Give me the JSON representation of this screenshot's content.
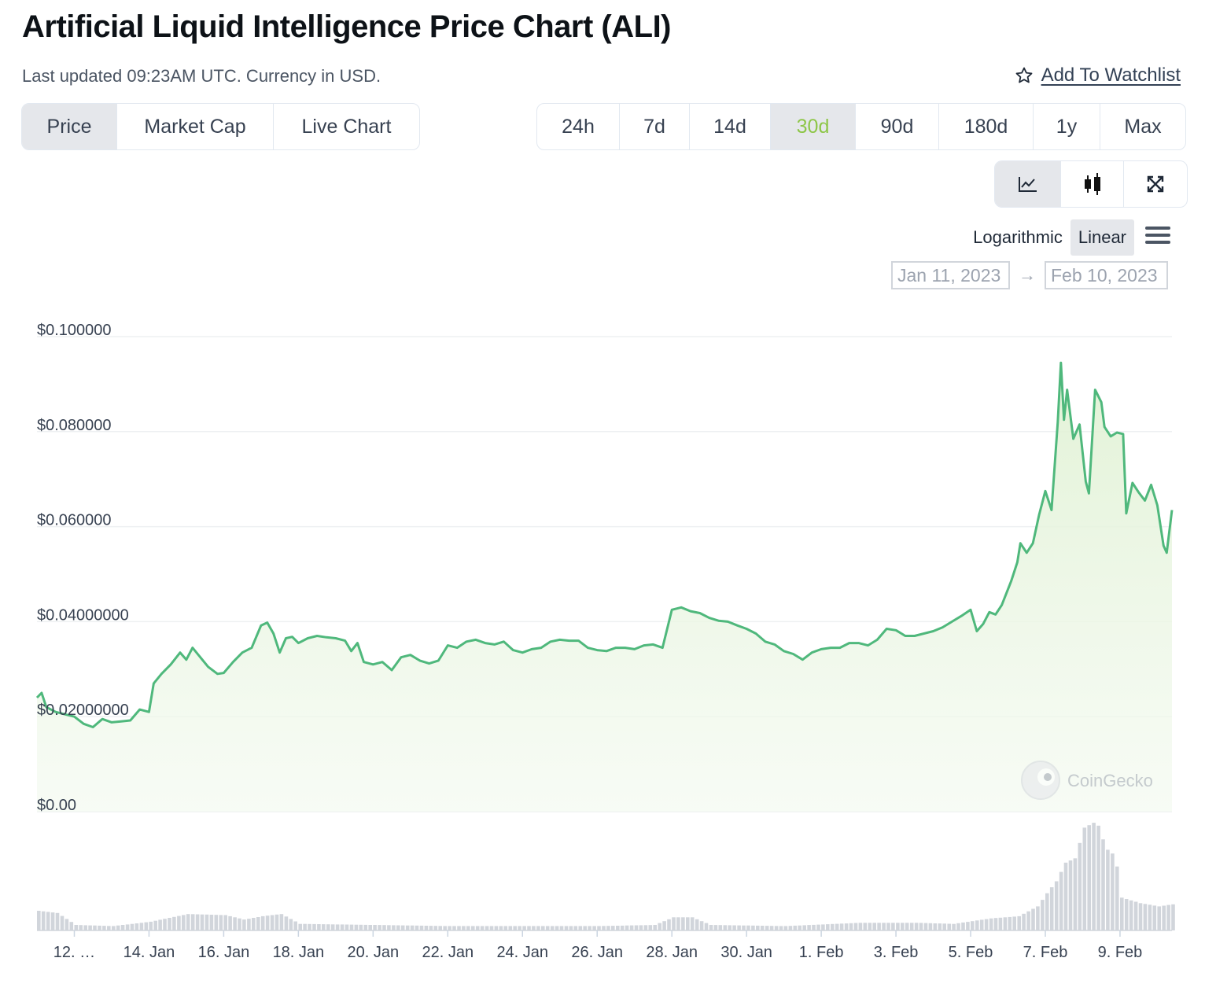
{
  "header": {
    "title": "Artificial Liquid Intelligence Price Chart (ALI)",
    "updated": "Last updated 09:23AM UTC. Currency in USD.",
    "watchlist": "Add To Watchlist"
  },
  "tabs": [
    "Price",
    "Market Cap",
    "Live Chart"
  ],
  "active_tab": "Price",
  "ranges": [
    "24h",
    "7d",
    "14d",
    "30d",
    "90d",
    "180d",
    "1y",
    "Max"
  ],
  "active_range": "30d",
  "chart_types": [
    {
      "name": "line-chart-icon"
    },
    {
      "name": "candlestick-icon"
    },
    {
      "name": "expand-icon"
    }
  ],
  "scale": {
    "log": "Logarithmic",
    "linear": "Linear",
    "selected": "Linear"
  },
  "date_range": {
    "from": "Jan 11, 2023",
    "to": "Feb 10, 2023"
  },
  "watermark": "CoinGecko",
  "colors": {
    "line": "#4fb87c",
    "fill_top": "#e6f5dc",
    "volume": "#d1d5db",
    "grid": "#eef0f2"
  },
  "chart_data": {
    "type": "area",
    "title": "",
    "xlabel": "",
    "ylabel": "",
    "ylim": [
      0,
      0.1
    ],
    "xlim": [
      "2023-01-11",
      "2023-02-10"
    ],
    "y_ticks": [
      "$0.00",
      "$0.02000000",
      "$0.04000000",
      "$0.060000",
      "$0.080000",
      "$0.100000"
    ],
    "x_ticks": [
      "12. …",
      "14. Jan",
      "16. Jan",
      "18. Jan",
      "20. Jan",
      "22. Jan",
      "24. Jan",
      "26. Jan",
      "28. Jan",
      "30. Jan",
      "1. Feb",
      "3. Feb",
      "5. Feb",
      "7. Feb",
      "9. Feb"
    ],
    "series": [
      {
        "values_desc": "price",
        "points": [
          [
            "2023-01-11 00:00",
            0.024
          ],
          [
            "2023-01-11 03:00",
            0.025
          ],
          [
            "2023-01-11 06:00",
            0.022
          ],
          [
            "2023-01-11 12:00",
            0.021
          ],
          [
            "2023-01-11 18:00",
            0.0205
          ],
          [
            "2023-01-12 00:00",
            0.02
          ],
          [
            "2023-01-12 06:00",
            0.0185
          ],
          [
            "2023-01-12 12:00",
            0.0178
          ],
          [
            "2023-01-12 18:00",
            0.0195
          ],
          [
            "2023-01-13 00:00",
            0.0188
          ],
          [
            "2023-01-13 06:00",
            0.019
          ],
          [
            "2023-01-13 12:00",
            0.0192
          ],
          [
            "2023-01-13 18:00",
            0.0215
          ],
          [
            "2023-01-14 00:00",
            0.021
          ],
          [
            "2023-01-14 03:00",
            0.027
          ],
          [
            "2023-01-14 08:00",
            0.029
          ],
          [
            "2023-01-14 14:00",
            0.031
          ],
          [
            "2023-01-14 20:00",
            0.0335
          ],
          [
            "2023-01-15 00:00",
            0.032
          ],
          [
            "2023-01-15 04:00",
            0.0345
          ],
          [
            "2023-01-15 09:00",
            0.0325
          ],
          [
            "2023-01-15 14:00",
            0.0305
          ],
          [
            "2023-01-15 20:00",
            0.029
          ],
          [
            "2023-01-16 00:00",
            0.0292
          ],
          [
            "2023-01-16 06:00",
            0.0315
          ],
          [
            "2023-01-16 12:00",
            0.0335
          ],
          [
            "2023-01-16 18:00",
            0.0345
          ],
          [
            "2023-01-17 00:00",
            0.0392
          ],
          [
            "2023-01-17 04:00",
            0.0398
          ],
          [
            "2023-01-17 08:00",
            0.0375
          ],
          [
            "2023-01-17 12:00",
            0.0335
          ],
          [
            "2023-01-17 16:00",
            0.0365
          ],
          [
            "2023-01-17 20:00",
            0.0368
          ],
          [
            "2023-01-18 00:00",
            0.0355
          ],
          [
            "2023-01-18 06:00",
            0.0365
          ],
          [
            "2023-01-18 12:00",
            0.037
          ],
          [
            "2023-01-18 18:00",
            0.0367
          ],
          [
            "2023-01-19 00:00",
            0.0365
          ],
          [
            "2023-01-19 06:00",
            0.036
          ],
          [
            "2023-01-19 10:00",
            0.0338
          ],
          [
            "2023-01-19 14:00",
            0.0355
          ],
          [
            "2023-01-19 18:00",
            0.0315
          ],
          [
            "2023-01-20 00:00",
            0.031
          ],
          [
            "2023-01-20 06:00",
            0.0315
          ],
          [
            "2023-01-20 12:00",
            0.0298
          ],
          [
            "2023-01-20 18:00",
            0.0325
          ],
          [
            "2023-01-21 00:00",
            0.033
          ],
          [
            "2023-01-21 06:00",
            0.0318
          ],
          [
            "2023-01-21 12:00",
            0.0312
          ],
          [
            "2023-01-21 18:00",
            0.0318
          ],
          [
            "2023-01-22 00:00",
            0.035
          ],
          [
            "2023-01-22 06:00",
            0.0345
          ],
          [
            "2023-01-22 12:00",
            0.0358
          ],
          [
            "2023-01-22 18:00",
            0.0362
          ],
          [
            "2023-01-23 00:00",
            0.0355
          ],
          [
            "2023-01-23 06:00",
            0.0352
          ],
          [
            "2023-01-23 12:00",
            0.0358
          ],
          [
            "2023-01-23 18:00",
            0.034
          ],
          [
            "2023-01-24 00:00",
            0.0335
          ],
          [
            "2023-01-24 06:00",
            0.0342
          ],
          [
            "2023-01-24 12:00",
            0.0345
          ],
          [
            "2023-01-24 18:00",
            0.0358
          ],
          [
            "2023-01-25 00:00",
            0.0362
          ],
          [
            "2023-01-25 06:00",
            0.036
          ],
          [
            "2023-01-25 12:00",
            0.036
          ],
          [
            "2023-01-25 18:00",
            0.0345
          ],
          [
            "2023-01-26 00:00",
            0.034
          ],
          [
            "2023-01-26 06:00",
            0.0338
          ],
          [
            "2023-01-26 12:00",
            0.0345
          ],
          [
            "2023-01-26 18:00",
            0.0345
          ],
          [
            "2023-01-27 00:00",
            0.0342
          ],
          [
            "2023-01-27 06:00",
            0.035
          ],
          [
            "2023-01-27 12:00",
            0.0352
          ],
          [
            "2023-01-27 18:00",
            0.0345
          ],
          [
            "2023-01-28 00:00",
            0.0425
          ],
          [
            "2023-01-28 06:00",
            0.043
          ],
          [
            "2023-01-28 12:00",
            0.0422
          ],
          [
            "2023-01-28 18:00",
            0.0418
          ],
          [
            "2023-01-29 00:00",
            0.0408
          ],
          [
            "2023-01-29 06:00",
            0.0402
          ],
          [
            "2023-01-29 12:00",
            0.04
          ],
          [
            "2023-01-29 18:00",
            0.0392
          ],
          [
            "2023-01-30 00:00",
            0.0385
          ],
          [
            "2023-01-30 06:00",
            0.0375
          ],
          [
            "2023-01-30 12:00",
            0.0358
          ],
          [
            "2023-01-30 18:00",
            0.0352
          ],
          [
            "2023-01-31 00:00",
            0.0338
          ],
          [
            "2023-01-31 06:00",
            0.0332
          ],
          [
            "2023-01-31 12:00",
            0.032
          ],
          [
            "2023-01-31 18:00",
            0.0335
          ],
          [
            "2023-02-01 00:00",
            0.0342
          ],
          [
            "2023-02-01 06:00",
            0.0345
          ],
          [
            "2023-02-01 12:00",
            0.0345
          ],
          [
            "2023-02-01 18:00",
            0.0355
          ],
          [
            "2023-02-02 00:00",
            0.0355
          ],
          [
            "2023-02-02 06:00",
            0.035
          ],
          [
            "2023-02-02 12:00",
            0.0362
          ],
          [
            "2023-02-02 18:00",
            0.0385
          ],
          [
            "2023-02-03 00:00",
            0.0382
          ],
          [
            "2023-02-03 06:00",
            0.037
          ],
          [
            "2023-02-03 12:00",
            0.037
          ],
          [
            "2023-02-03 18:00",
            0.0375
          ],
          [
            "2023-02-04 00:00",
            0.038
          ],
          [
            "2023-02-04 06:00",
            0.0388
          ],
          [
            "2023-02-04 12:00",
            0.04
          ],
          [
            "2023-02-04 18:00",
            0.0412
          ],
          [
            "2023-02-05 00:00",
            0.0425
          ],
          [
            "2023-02-05 04:00",
            0.038
          ],
          [
            "2023-02-05 08:00",
            0.0395
          ],
          [
            "2023-02-05 12:00",
            0.042
          ],
          [
            "2023-02-05 16:00",
            0.0415
          ],
          [
            "2023-02-05 20:00",
            0.0435
          ],
          [
            "2023-02-06 02:00",
            0.0485
          ],
          [
            "2023-02-06 06:00",
            0.0525
          ],
          [
            "2023-02-06 08:00",
            0.0565
          ],
          [
            "2023-02-06 12:00",
            0.0545
          ],
          [
            "2023-02-06 16:00",
            0.0565
          ],
          [
            "2023-02-06 20:00",
            0.0625
          ],
          [
            "2023-02-07 00:00",
            0.0675
          ],
          [
            "2023-02-07 04:00",
            0.0635
          ],
          [
            "2023-02-07 08:00",
            0.082
          ],
          [
            "2023-02-07 10:00",
            0.0945
          ],
          [
            "2023-02-07 12:00",
            0.0825
          ],
          [
            "2023-02-07 14:00",
            0.0888
          ],
          [
            "2023-02-07 18:00",
            0.0785
          ],
          [
            "2023-02-07 22:00",
            0.0815
          ],
          [
            "2023-02-08 02:00",
            0.0695
          ],
          [
            "2023-02-08 04:00",
            0.067
          ],
          [
            "2023-02-08 08:00",
            0.0888
          ],
          [
            "2023-02-08 12:00",
            0.0862
          ],
          [
            "2023-02-08 14:00",
            0.081
          ],
          [
            "2023-02-08 18:00",
            0.079
          ],
          [
            "2023-02-08 22:00",
            0.0798
          ],
          [
            "2023-02-09 02:00",
            0.0795
          ],
          [
            "2023-02-09 04:00",
            0.0628
          ],
          [
            "2023-02-09 08:00",
            0.0692
          ],
          [
            "2023-02-09 12:00",
            0.0672
          ],
          [
            "2023-02-09 16:00",
            0.0655
          ],
          [
            "2023-02-09 20:00",
            0.0688
          ],
          [
            "2023-02-10 00:00",
            0.0645
          ],
          [
            "2023-02-10 04:00",
            0.056
          ],
          [
            "2023-02-10 06:00",
            0.0545
          ],
          [
            "2023-02-10 09:23",
            0.0635
          ]
        ]
      }
    ],
    "volume_relative": [
      [
        "2023-01-11 00:00",
        0.18
      ],
      [
        "2023-01-11 12:00",
        0.16
      ],
      [
        "2023-01-12 00:00",
        0.05
      ],
      [
        "2023-01-13 00:00",
        0.04
      ],
      [
        "2023-01-14 00:00",
        0.08
      ],
      [
        "2023-01-15 00:00",
        0.15
      ],
      [
        "2023-01-16 00:00",
        0.14
      ],
      [
        "2023-01-16 12:00",
        0.1
      ],
      [
        "2023-01-17 00:00",
        0.13
      ],
      [
        "2023-01-17 12:00",
        0.15
      ],
      [
        "2023-01-18 00:00",
        0.06
      ],
      [
        "2023-01-20 00:00",
        0.05
      ],
      [
        "2023-01-22 00:00",
        0.04
      ],
      [
        "2023-01-24 00:00",
        0.04
      ],
      [
        "2023-01-26 00:00",
        0.04
      ],
      [
        "2023-01-27 12:00",
        0.05
      ],
      [
        "2023-01-28 00:00",
        0.12
      ],
      [
        "2023-01-28 12:00",
        0.12
      ],
      [
        "2023-01-29 00:00",
        0.05
      ],
      [
        "2023-01-31 00:00",
        0.04
      ],
      [
        "2023-02-02 00:00",
        0.07
      ],
      [
        "2023-02-03 12:00",
        0.07
      ],
      [
        "2023-02-04 12:00",
        0.06
      ],
      [
        "2023-02-05 12:00",
        0.11
      ],
      [
        "2023-02-06 06:00",
        0.13
      ],
      [
        "2023-02-06 18:00",
        0.22
      ],
      [
        "2023-02-07 00:00",
        0.34
      ],
      [
        "2023-02-07 06:00",
        0.45
      ],
      [
        "2023-02-07 12:00",
        0.62
      ],
      [
        "2023-02-07 18:00",
        0.66
      ],
      [
        "2023-02-08 00:00",
        0.94
      ],
      [
        "2023-02-08 08:00",
        1.0
      ],
      [
        "2023-02-08 14:00",
        0.75
      ],
      [
        "2023-02-08 20:00",
        0.68
      ],
      [
        "2023-02-09 00:00",
        0.3
      ],
      [
        "2023-02-09 12:00",
        0.25
      ],
      [
        "2023-02-10 00:00",
        0.22
      ],
      [
        "2023-02-10 09:23",
        0.24
      ]
    ]
  }
}
